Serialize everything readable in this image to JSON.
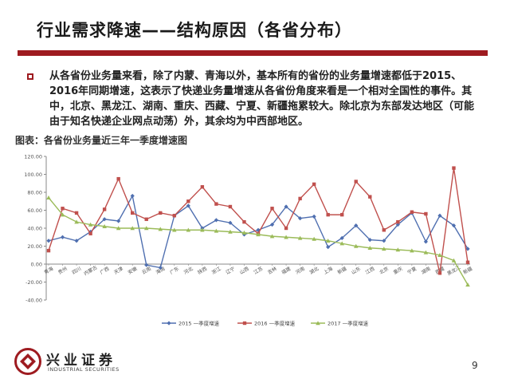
{
  "slide": {
    "title": "行业需求降速——结构原因（各省分布）",
    "bullet": "从各省份业务量来看，除了内蒙、青海以外，基本所有的省份的业务量增速都低于2015、2016年同期增速，这表示了快递业务量增速从各省份角度来看是一个相对全国性的事件。其中，北京、黑龙江、湖南、重庆、西藏、宁夏、新疆拖累较大。除北京为东部发达地区（可能由于知名快递企业网点动荡）外，其余均为中西部地区。",
    "chart_caption": "图表：各省份业务量近三年一季度增速图",
    "page_number": "9"
  },
  "logo": {
    "name_cn": "兴业证券",
    "name_en": "INDUSTRIAL SECURITIES",
    "color": "#9e1b20"
  },
  "chart_data": {
    "type": "line",
    "categories": [
      "青海",
      "贵州",
      "四川",
      "内蒙古",
      "广西",
      "天津",
      "安徽",
      "云南",
      "海南",
      "广东",
      "河北",
      "陕西",
      "浙江",
      "辽宁",
      "山西",
      "江苏",
      "吉林",
      "福建",
      "河南",
      "湖北",
      "上海",
      "新疆",
      "山东",
      "江西",
      "北京",
      "重庆",
      "宁夏",
      "湖南",
      "西藏",
      "黑龙江",
      "新疆"
    ],
    "series": [
      {
        "name": "2015 一季度增速",
        "color": "#4f6fb0",
        "marker": "diamond",
        "values": [
          26,
          30,
          26,
          36,
          50,
          48,
          76,
          -1,
          -4,
          54,
          65,
          40,
          49,
          46,
          33,
          38,
          44,
          64,
          51,
          53,
          19,
          29,
          43,
          27,
          26,
          44,
          57,
          25,
          54,
          43,
          17
        ]
      },
      {
        "name": "2016 一季度增速",
        "color": "#c0504d",
        "marker": "square",
        "values": [
          15,
          62,
          57,
          34,
          61,
          95,
          57,
          50,
          57,
          54,
          70,
          86,
          67,
          64,
          47,
          34,
          62,
          40,
          73,
          89,
          55,
          55,
          92,
          75,
          38,
          47,
          58,
          56,
          -10,
          107,
          2
        ]
      },
      {
        "name": "2017 一季度增速",
        "color": "#9bbb59",
        "marker": "triangle",
        "values": [
          74,
          55,
          47,
          44,
          42,
          40,
          40,
          40,
          39,
          38,
          38,
          38,
          37,
          36,
          35,
          33,
          31,
          30,
          29,
          28,
          26,
          23,
          20,
          18,
          17,
          16,
          15,
          13,
          10,
          4,
          -23
        ]
      }
    ],
    "ylim": [
      -40,
      120
    ],
    "yticks": [
      "-40.00",
      "-20.00",
      "0.00",
      "20.00",
      "40.00",
      "60.00",
      "80.00",
      "100.00",
      "120.00"
    ],
    "grid": false,
    "legend": "bottom"
  }
}
